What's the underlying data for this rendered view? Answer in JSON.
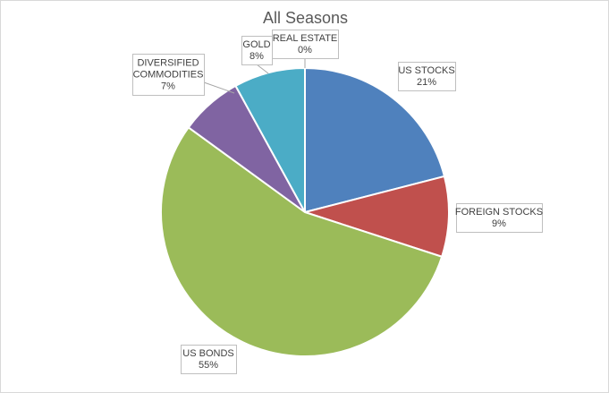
{
  "chart_data": {
    "type": "pie",
    "title": "All Seasons",
    "categories": [
      "US STOCKS",
      "FOREIGN STOCKS",
      "US BONDS",
      "DIVERSIFIED COMMODITIES",
      "GOLD",
      "REAL ESTATE"
    ],
    "values": [
      21,
      9,
      55,
      7,
      8,
      0
    ],
    "labels": [
      "21%",
      "9%",
      "55%",
      "7%",
      "8%",
      "0%"
    ],
    "colors": [
      "#4f81bd",
      "#c0504d",
      "#9bbb59",
      "#8064a2",
      "#4bacc6",
      "#f79646"
    ],
    "legend": "none",
    "data_labels": "outside with leader lines"
  }
}
